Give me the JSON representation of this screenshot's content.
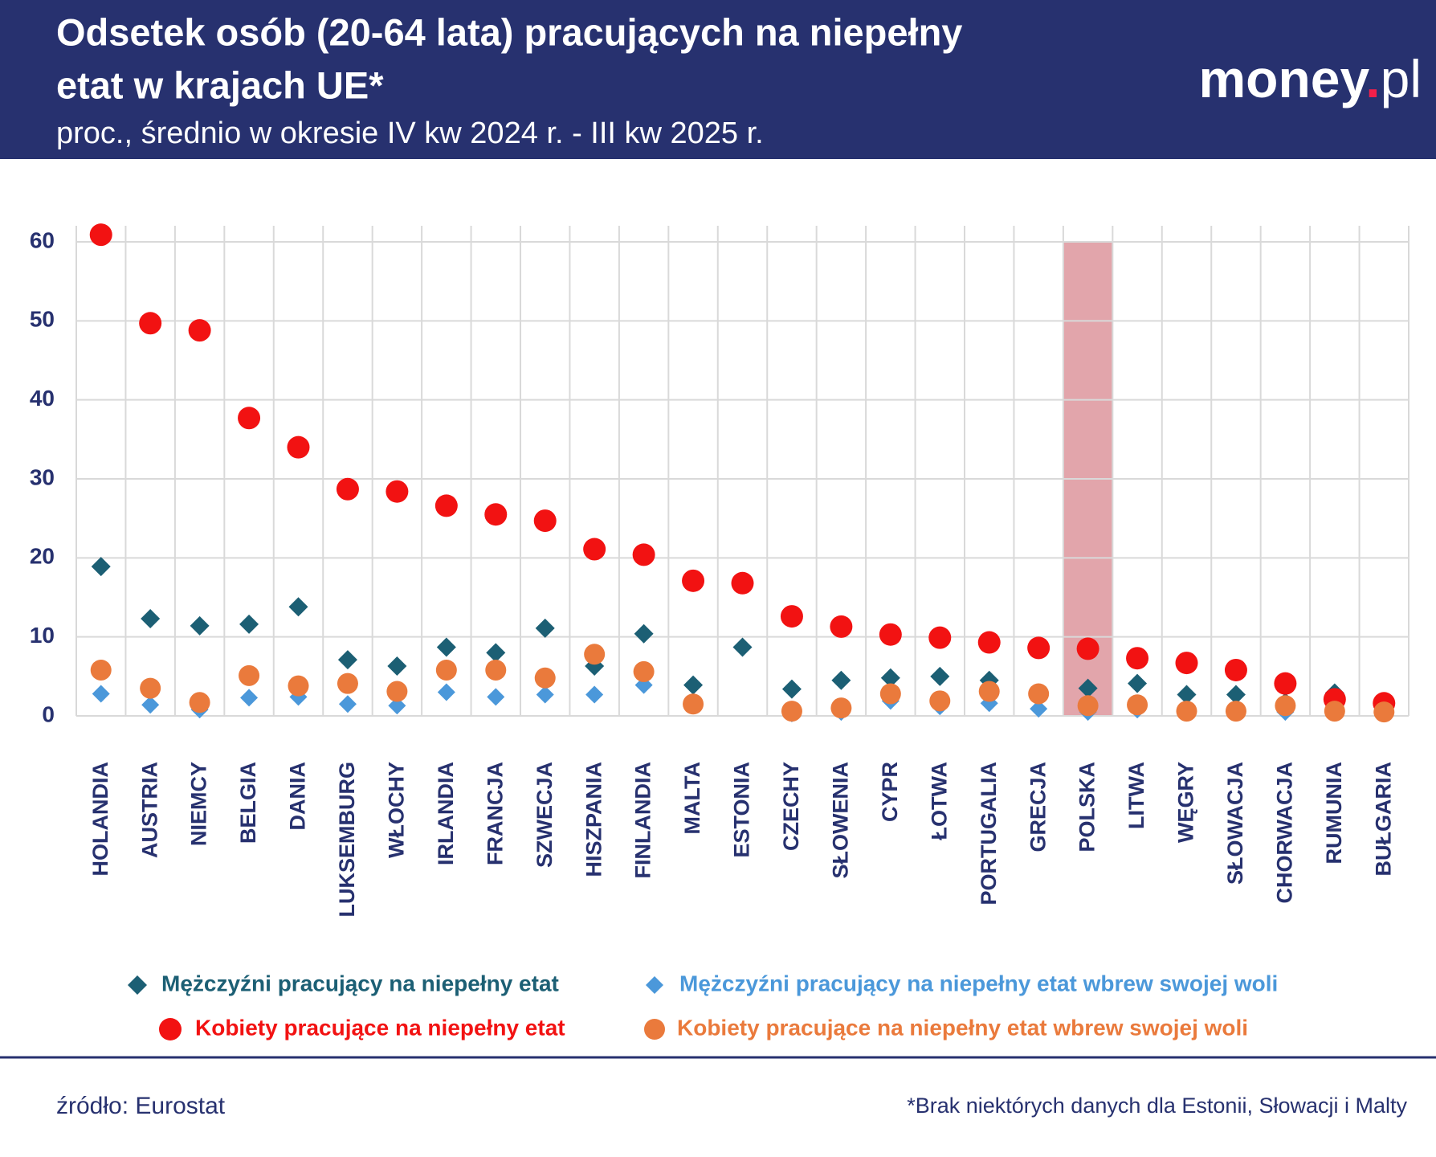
{
  "chart_data": {
    "type": "scatter",
    "title": [
      "Odsetek osób (20-64 lata) pracujących na niepełny",
      "etat w krajach UE*"
    ],
    "subtitle": "proc., średnio w okresie IV kw 2024 r. - III kw 2025 r.",
    "logo": [
      "money",
      ".",
      "pl"
    ],
    "source": "źródło: Eurostat",
    "note": "*Brak niektórych danych dla Estonii, Słowacji i Malty",
    "categories": [
      "HOLANDIA",
      "AUSTRIA",
      "NIEMCY",
      "BELGIA",
      "DANIA",
      "LUKSEMBURG",
      "WŁOCHY",
      "IRLANDIA",
      "FRANCJA",
      "SZWECJA",
      "HISZPANIA",
      "FINLANDIA",
      "MALTA",
      "ESTONIA",
      "CZECHY",
      "SŁOWENIA",
      "CYPR",
      "ŁOTWA",
      "PORTUGALIA",
      "GRECJA",
      "POLSKA",
      "LITWA",
      "WĘGRY",
      "SŁOWACJA",
      "CHORWACJA",
      "RUMUNIA",
      "BUŁGARIA"
    ],
    "highlight_category": "POLSKA",
    "highlight_color": "#e0a0a6",
    "series": [
      {
        "name": "Mężczyźni pracujący na niepełny etat",
        "color": "#1c5f74",
        "marker": "diamond",
        "values": [
          18.9,
          12.3,
          11.4,
          11.6,
          13.8,
          7.1,
          6.3,
          8.7,
          8.0,
          11.1,
          6.3,
          10.4,
          3.9,
          8.7,
          3.4,
          4.5,
          4.8,
          5.0,
          4.5,
          2.8,
          3.5,
          4.1,
          2.7,
          2.7,
          1.7,
          2.9,
          1.0
        ]
      },
      {
        "name": "Mężczyźni pracujący na niepełny etat wbrew swojej woli",
        "color": "#4b98da",
        "marker": "diamond",
        "values": [
          2.8,
          1.4,
          0.8,
          2.3,
          2.4,
          1.5,
          1.3,
          3.0,
          2.4,
          2.7,
          2.7,
          3.9,
          1.5,
          null,
          0.3,
          0.5,
          1.9,
          1.2,
          1.6,
          0.9,
          0.5,
          0.8,
          0.4,
          0.5,
          0.5,
          0.4,
          0.3
        ]
      },
      {
        "name": "Kobiety pracujące na niepełny etat",
        "color": "#f21212",
        "marker": "circle",
        "values": [
          60.9,
          49.7,
          48.8,
          37.7,
          34.0,
          28.7,
          28.4,
          26.6,
          25.5,
          24.7,
          21.1,
          20.4,
          17.1,
          16.8,
          12.6,
          11.3,
          10.3,
          9.9,
          9.3,
          8.6,
          8.5,
          7.3,
          6.7,
          5.8,
          4.1,
          2.1,
          1.6
        ]
      },
      {
        "name": "Kobiety pracujące na niepełny etat wbrew swojej woli",
        "color": "#ea7a3c",
        "marker": "circle",
        "values": [
          5.8,
          3.5,
          1.7,
          5.1,
          3.8,
          4.1,
          3.1,
          5.8,
          5.8,
          4.8,
          7.8,
          5.6,
          1.5,
          null,
          0.6,
          1.0,
          2.8,
          1.9,
          3.1,
          2.8,
          1.3,
          1.4,
          0.6,
          0.6,
          1.3,
          0.6,
          0.5
        ]
      }
    ],
    "ylim": [
      0,
      60
    ],
    "yticks": [
      0,
      10,
      20,
      30,
      40,
      50,
      60
    ],
    "grid": true
  }
}
